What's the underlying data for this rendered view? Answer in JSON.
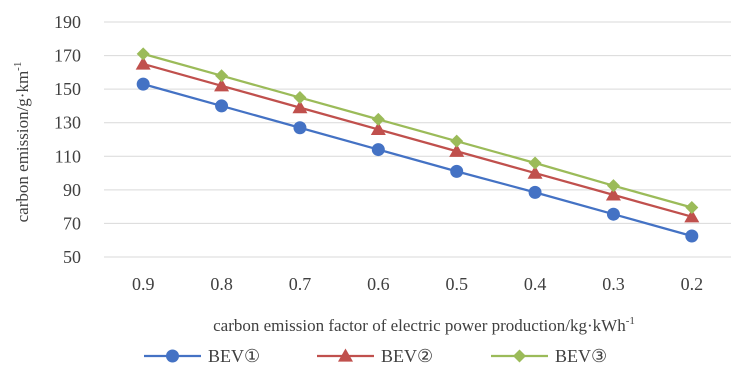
{
  "chart_data": {
    "type": "line",
    "x": [
      0.9,
      0.8,
      0.7,
      0.6,
      0.5,
      0.4,
      0.3,
      0.2
    ],
    "x_labels": [
      "0.9",
      "0.8",
      "0.7",
      "0.6",
      "0.5",
      "0.4",
      "0.3",
      "0.2"
    ],
    "ylim": [
      50,
      190
    ],
    "y_ticks": [
      50,
      70,
      90,
      110,
      130,
      150,
      170,
      190
    ],
    "xlabel": "carbon emission factor of electric power production/kg·kWh",
    "xlabel_sup": "-1",
    "ylabel": "carbon emission/g·km",
    "ylabel_sup": "-1",
    "grid": "horizontal",
    "legend_position": "bottom",
    "series": [
      {
        "name": "BEV①",
        "color": "#4472C4",
        "marker": "circle",
        "values": [
          153,
          140,
          127,
          114,
          101,
          88.5,
          75.5,
          62.5
        ]
      },
      {
        "name": "BEV②",
        "color": "#C0504D",
        "marker": "triangle",
        "values": [
          165,
          152,
          139,
          126,
          113,
          100,
          87,
          74
        ]
      },
      {
        "name": "BEV③",
        "color": "#9BBB59",
        "marker": "diamond",
        "values": [
          171,
          158,
          145,
          132,
          119,
          106,
          92.5,
          79.5
        ]
      }
    ]
  }
}
